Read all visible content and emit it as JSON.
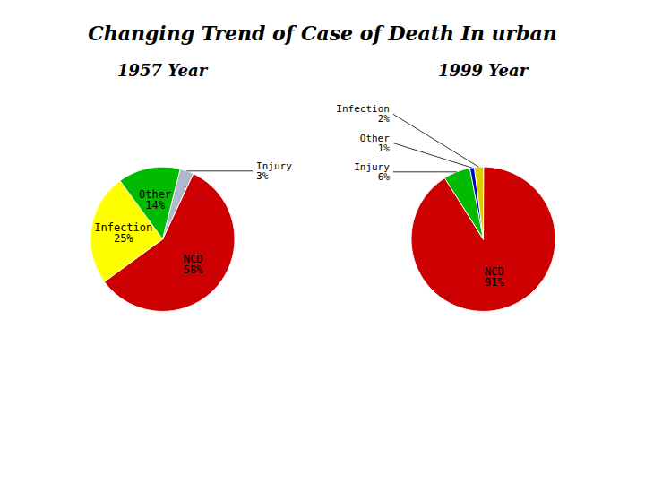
{
  "title": "Changing Trend of Case of Death In urban",
  "chart_data": [
    {
      "type": "pie",
      "title": "1957 Year",
      "categories": [
        "NCD",
        "Infection",
        "Other",
        "Injury"
      ],
      "values": [
        58,
        25,
        14,
        3
      ],
      "value_labels": [
        "58%",
        "25%",
        "14%",
        "3%"
      ],
      "colors": [
        "#cc0000",
        "#ffff00",
        "#00bb00",
        "#b0b8cc"
      ],
      "data_labels": true
    },
    {
      "type": "pie",
      "title": "1999 Year",
      "categories": [
        "NCD",
        "Injury",
        "Other",
        "Infection"
      ],
      "values": [
        91,
        6,
        1,
        2
      ],
      "value_labels": [
        "91%",
        "6%",
        "1%",
        "2%"
      ],
      "colors": [
        "#cc0000",
        "#00bb00",
        "#0000cc",
        "#ddcc00"
      ],
      "data_labels": true
    }
  ]
}
